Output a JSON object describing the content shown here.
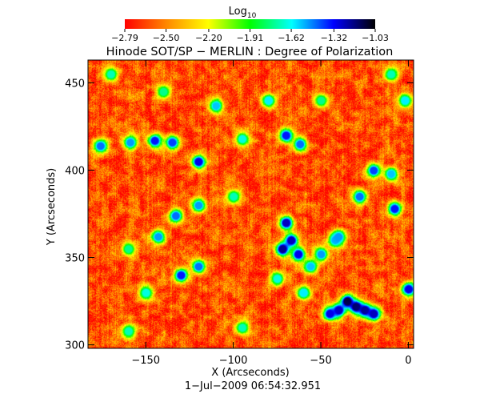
{
  "chart_data": {
    "type": "heatmap",
    "title": "Hinode SOT/SP − MERLIN : Degree of Polarization",
    "subtitle": "1−Jul−2009 06:54:32.951",
    "xlabel": "X (Arcseconds)",
    "ylabel": "Y (Arcseconds)",
    "xlim": [
      -183,
      3
    ],
    "ylim": [
      298,
      463
    ],
    "x_ticks": [
      {
        "value": -150,
        "label": "−150"
      },
      {
        "value": -100,
        "label": "−100"
      },
      {
        "value": -50,
        "label": "−50"
      },
      {
        "value": 0,
        "label": "0"
      }
    ],
    "y_ticks": [
      {
        "value": 300,
        "label": "300"
      },
      {
        "value": 350,
        "label": "350"
      },
      {
        "value": 400,
        "label": "400"
      },
      {
        "value": 450,
        "label": "450"
      }
    ],
    "colorbar": {
      "label": "Log",
      "label_subscript": "10",
      "range": [
        -2.79,
        -1.03
      ],
      "tick_values": [
        -2.79,
        -2.5,
        -2.2,
        -1.91,
        -1.62,
        -1.32,
        -1.03
      ],
      "tick_labels": [
        "−2.79",
        "−2.50",
        "−2.20",
        "−1.91",
        "−1.62",
        "−1.32",
        "−1.03"
      ],
      "colormap": [
        "#ff0000",
        "#ff8800",
        "#ffff00",
        "#00ff00",
        "#00ffff",
        "#0000ff",
        "#000000"
      ]
    },
    "background_value": -2.62,
    "features": [
      {
        "x": -176,
        "y": 414,
        "value": -1.45
      },
      {
        "x": -159,
        "y": 416,
        "value": -1.5
      },
      {
        "x": -145,
        "y": 417,
        "value": -1.35
      },
      {
        "x": -135,
        "y": 416,
        "value": -1.4
      },
      {
        "x": -120,
        "y": 405,
        "value": -1.3
      },
      {
        "x": -110,
        "y": 437,
        "value": -1.55
      },
      {
        "x": -70,
        "y": 420,
        "value": -1.35
      },
      {
        "x": -62,
        "y": 415,
        "value": -1.45
      },
      {
        "x": -80,
        "y": 440,
        "value": -1.6
      },
      {
        "x": -20,
        "y": 400,
        "value": -1.4
      },
      {
        "x": -10,
        "y": 398,
        "value": -1.55
      },
      {
        "x": -2,
        "y": 440,
        "value": -1.6
      },
      {
        "x": -28,
        "y": 385,
        "value": -1.45
      },
      {
        "x": -42,
        "y": 360,
        "value": -1.55
      },
      {
        "x": -8,
        "y": 378,
        "value": -1.35
      },
      {
        "x": -120,
        "y": 380,
        "value": -1.5
      },
      {
        "x": -133,
        "y": 374,
        "value": -1.45
      },
      {
        "x": -143,
        "y": 362,
        "value": -1.5
      },
      {
        "x": -67,
        "y": 360,
        "value": -1.25
      },
      {
        "x": -72,
        "y": 355,
        "value": -1.2
      },
      {
        "x": -63,
        "y": 352,
        "value": -1.3
      },
      {
        "x": -70,
        "y": 370,
        "value": -1.25
      },
      {
        "x": -56,
        "y": 345,
        "value": -1.55
      },
      {
        "x": -50,
        "y": 352,
        "value": -1.5
      },
      {
        "x": -120,
        "y": 345,
        "value": -1.45
      },
      {
        "x": -130,
        "y": 340,
        "value": -1.35
      },
      {
        "x": -40,
        "y": 362,
        "value": -1.5
      },
      {
        "x": -35,
        "y": 325,
        "value": -1.1
      },
      {
        "x": -30,
        "y": 322,
        "value": -1.15
      },
      {
        "x": -25,
        "y": 320,
        "value": -1.2
      },
      {
        "x": -40,
        "y": 320,
        "value": -1.25
      },
      {
        "x": -45,
        "y": 318,
        "value": -1.3
      },
      {
        "x": -20,
        "y": 318,
        "value": -1.25
      },
      {
        "x": 0,
        "y": 332,
        "value": -1.3
      },
      {
        "x": -60,
        "y": 330,
        "value": -1.6
      },
      {
        "x": -75,
        "y": 338,
        "value": -1.65
      },
      {
        "x": -160,
        "y": 308,
        "value": -1.7
      },
      {
        "x": -150,
        "y": 330,
        "value": -1.65
      },
      {
        "x": -95,
        "y": 310,
        "value": -1.7
      },
      {
        "x": -100,
        "y": 385,
        "value": -1.7
      },
      {
        "x": -95,
        "y": 418,
        "value": -1.65
      },
      {
        "x": -160,
        "y": 355,
        "value": -1.75
      },
      {
        "x": -170,
        "y": 455,
        "value": -1.7
      },
      {
        "x": -140,
        "y": 445,
        "value": -1.75
      },
      {
        "x": -10,
        "y": 455,
        "value": -1.7
      },
      {
        "x": -50,
        "y": 440,
        "value": -1.75
      }
    ]
  }
}
